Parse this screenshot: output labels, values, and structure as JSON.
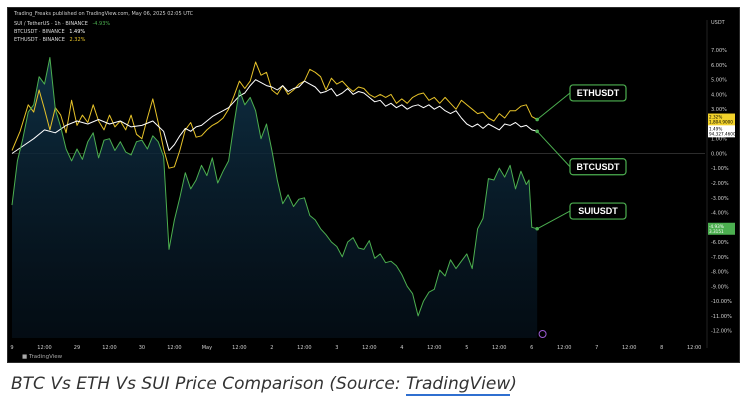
{
  "header": {
    "published": "Trading_Freaks published on TradingView.com, May 06, 2025 02:05 UTC",
    "legend": [
      {
        "label": "SUI / TetherUS · 1h · BINANCE",
        "value": "-4.93%",
        "color": "#4caf50"
      },
      {
        "label": "BTCUSDT · BINANCE",
        "value": "1.49%",
        "color": "#ffffff"
      },
      {
        "label": "ETHUSDT · BINANCE",
        "value": "2.32%",
        "color": "#e6c229"
      }
    ]
  },
  "price_scale_label": "USDT",
  "watermark": "TradingView",
  "chart_data": {
    "type": "line",
    "y_unit": "%",
    "ylim": [
      -12.5,
      8.5
    ],
    "y_ticks": [
      7,
      6,
      5,
      4,
      3,
      2,
      1,
      0,
      -1,
      -2,
      -3,
      -4,
      -5,
      -6,
      -7,
      -8,
      -9,
      -10,
      -11,
      -12
    ],
    "y_tick_labels": [
      "7.00%",
      "6.00%",
      "5.00%",
      "4.00%",
      "3.00%",
      "2.00%",
      "1.00%",
      "0.00%",
      "-1.00%",
      "-2.00%",
      "-3.00%",
      "-4.00%",
      "-5.00%",
      "-6.00%",
      "-7.00%",
      "-8.00%",
      "-9.00%",
      "-10.00%",
      "-11.00%",
      "-12.00%"
    ],
    "x_ticks": [
      {
        "pos": 0,
        "label": "9"
      },
      {
        "pos": 12,
        "label": "12:00"
      },
      {
        "pos": 24,
        "label": "29"
      },
      {
        "pos": 36,
        "label": "12:00"
      },
      {
        "pos": 48,
        "label": "30"
      },
      {
        "pos": 60,
        "label": "12:00"
      },
      {
        "pos": 72,
        "label": "May"
      },
      {
        "pos": 84,
        "label": "12:00"
      },
      {
        "pos": 96,
        "label": "2"
      },
      {
        "pos": 108,
        "label": "12:00"
      },
      {
        "pos": 120,
        "label": "3"
      },
      {
        "pos": 132,
        "label": "12:00"
      },
      {
        "pos": 144,
        "label": "4"
      },
      {
        "pos": 156,
        "label": "12:00"
      },
      {
        "pos": 168,
        "label": "5"
      },
      {
        "pos": 180,
        "label": "12:00"
      },
      {
        "pos": 192,
        "label": "6"
      },
      {
        "pos": 204,
        "label": "12:00"
      },
      {
        "pos": 216,
        "label": "7"
      },
      {
        "pos": 228,
        "label": "12:00"
      },
      {
        "pos": 240,
        "label": "8"
      },
      {
        "pos": 252,
        "label": "12:00"
      }
    ],
    "xlim": [
      0,
      256
    ],
    "series": [
      {
        "name": "ETHUSDT",
        "color": "#e6c229",
        "price_tag": "1,804.9000",
        "pct_tag": "2.32%",
        "points": [
          [
            0,
            0.2
          ],
          [
            3,
            1.5
          ],
          [
            6,
            3.3
          ],
          [
            8,
            2.8
          ],
          [
            10,
            4.3
          ],
          [
            12,
            3.0
          ],
          [
            14,
            1.6
          ],
          [
            16,
            3.1
          ],
          [
            18,
            2.6
          ],
          [
            20,
            1.4
          ],
          [
            22,
            3.6
          ],
          [
            24,
            1.9
          ],
          [
            26,
            2.6
          ],
          [
            28,
            2.1
          ],
          [
            30,
            3.3
          ],
          [
            32,
            2.2
          ],
          [
            34,
            1.6
          ],
          [
            36,
            2.6
          ],
          [
            38,
            1.8
          ],
          [
            40,
            2.2
          ],
          [
            42,
            1.6
          ],
          [
            44,
            2.6
          ],
          [
            46,
            1.3
          ],
          [
            48,
            1.0
          ],
          [
            50,
            2.4
          ],
          [
            52,
            3.7
          ],
          [
            54,
            2.1
          ],
          [
            56,
            0.3
          ],
          [
            58,
            -1.0
          ],
          [
            60,
            -0.9
          ],
          [
            62,
            0.2
          ],
          [
            64,
            1.6
          ],
          [
            66,
            2.1
          ],
          [
            68,
            1.1
          ],
          [
            70,
            1.2
          ],
          [
            72,
            1.6
          ],
          [
            74,
            1.9
          ],
          [
            76,
            2.1
          ],
          [
            78,
            2.4
          ],
          [
            80,
            3.0
          ],
          [
            82,
            3.9
          ],
          [
            84,
            4.9
          ],
          [
            86,
            4.4
          ],
          [
            88,
            4.9
          ],
          [
            90,
            6.2
          ],
          [
            92,
            5.3
          ],
          [
            94,
            5.5
          ],
          [
            96,
            4.3
          ],
          [
            98,
            4.0
          ],
          [
            100,
            4.6
          ],
          [
            102,
            4.0
          ],
          [
            104,
            4.3
          ],
          [
            106,
            4.7
          ],
          [
            108,
            4.9
          ],
          [
            110,
            5.7
          ],
          [
            112,
            5.5
          ],
          [
            114,
            5.2
          ],
          [
            116,
            4.3
          ],
          [
            118,
            5.1
          ],
          [
            120,
            4.7
          ],
          [
            122,
            4.9
          ],
          [
            124,
            4.5
          ],
          [
            126,
            4.2
          ],
          [
            128,
            4.5
          ],
          [
            130,
            4.4
          ],
          [
            132,
            4.0
          ],
          [
            134,
            3.8
          ],
          [
            136,
            4.0
          ],
          [
            138,
            3.8
          ],
          [
            140,
            4.0
          ],
          [
            142,
            3.4
          ],
          [
            144,
            3.7
          ],
          [
            146,
            3.4
          ],
          [
            148,
            3.8
          ],
          [
            150,
            4.0
          ],
          [
            152,
            4.1
          ],
          [
            154,
            3.6
          ],
          [
            156,
            3.8
          ],
          [
            158,
            3.4
          ],
          [
            160,
            3.8
          ],
          [
            162,
            3.4
          ],
          [
            164,
            3.0
          ],
          [
            166,
            3.6
          ],
          [
            168,
            3.3
          ],
          [
            170,
            3.0
          ],
          [
            172,
            2.7
          ],
          [
            174,
            2.8
          ],
          [
            176,
            2.4
          ],
          [
            178,
            2.2
          ],
          [
            180,
            2.7
          ],
          [
            182,
            2.4
          ],
          [
            184,
            2.9
          ],
          [
            186,
            2.9
          ],
          [
            188,
            3.2
          ],
          [
            190,
            3.3
          ],
          [
            192,
            2.5
          ],
          [
            194,
            2.3
          ]
        ]
      },
      {
        "name": "BTCUSDT",
        "color": "#ffffff",
        "price_tag": "94,327.4600",
        "pct_tag": "1.49%",
        "points": [
          [
            0,
            0.0
          ],
          [
            4,
            0.5
          ],
          [
            8,
            1.0
          ],
          [
            12,
            1.6
          ],
          [
            16,
            1.4
          ],
          [
            20,
            1.9
          ],
          [
            24,
            2.2
          ],
          [
            28,
            2.0
          ],
          [
            32,
            2.3
          ],
          [
            36,
            2.0
          ],
          [
            40,
            2.2
          ],
          [
            44,
            1.8
          ],
          [
            48,
            1.9
          ],
          [
            52,
            2.2
          ],
          [
            56,
            1.5
          ],
          [
            58,
            0.2
          ],
          [
            60,
            0.6
          ],
          [
            62,
            1.2
          ],
          [
            64,
            1.7
          ],
          [
            66,
            1.5
          ],
          [
            68,
            1.8
          ],
          [
            70,
            1.9
          ],
          [
            72,
            2.2
          ],
          [
            74,
            2.5
          ],
          [
            76,
            2.7
          ],
          [
            78,
            2.9
          ],
          [
            80,
            3.1
          ],
          [
            82,
            3.5
          ],
          [
            84,
            3.9
          ],
          [
            86,
            4.1
          ],
          [
            88,
            4.6
          ],
          [
            90,
            5.0
          ],
          [
            92,
            4.8
          ],
          [
            94,
            4.6
          ],
          [
            96,
            4.5
          ],
          [
            98,
            4.3
          ],
          [
            100,
            4.6
          ],
          [
            102,
            4.2
          ],
          [
            104,
            4.4
          ],
          [
            106,
            4.5
          ],
          [
            108,
            4.9
          ],
          [
            110,
            4.7
          ],
          [
            112,
            4.5
          ],
          [
            114,
            4.1
          ],
          [
            116,
            4.2
          ],
          [
            118,
            4.4
          ],
          [
            120,
            3.9
          ],
          [
            122,
            4.1
          ],
          [
            124,
            4.4
          ],
          [
            126,
            4.0
          ],
          [
            128,
            4.2
          ],
          [
            130,
            4.1
          ],
          [
            132,
            3.8
          ],
          [
            134,
            3.5
          ],
          [
            136,
            3.6
          ],
          [
            138,
            3.2
          ],
          [
            140,
            3.4
          ],
          [
            142,
            3.1
          ],
          [
            144,
            3.3
          ],
          [
            146,
            3.0
          ],
          [
            148,
            3.2
          ],
          [
            150,
            3.3
          ],
          [
            152,
            3.1
          ],
          [
            154,
            3.3
          ],
          [
            156,
            3.0
          ],
          [
            158,
            3.2
          ],
          [
            160,
            2.9
          ],
          [
            162,
            2.7
          ],
          [
            164,
            2.9
          ],
          [
            166,
            2.4
          ],
          [
            168,
            2.0
          ],
          [
            170,
            1.8
          ],
          [
            172,
            2.0
          ],
          [
            174,
            1.7
          ],
          [
            176,
            2.0
          ],
          [
            178,
            1.8
          ],
          [
            180,
            1.6
          ],
          [
            182,
            2.0
          ],
          [
            184,
            1.9
          ],
          [
            186,
            2.1
          ],
          [
            188,
            1.8
          ],
          [
            190,
            1.9
          ],
          [
            192,
            1.6
          ],
          [
            194,
            1.5
          ]
        ]
      },
      {
        "name": "SUIUSDT",
        "color": "#4caf50",
        "price_tag": "3.3151",
        "pct_tag": "-4.93%",
        "points": [
          [
            0,
            -3.5
          ],
          [
            2,
            -0.5
          ],
          [
            4,
            1.0
          ],
          [
            6,
            2.8
          ],
          [
            8,
            3.3
          ],
          [
            10,
            5.2
          ],
          [
            12,
            4.7
          ],
          [
            14,
            6.5
          ],
          [
            16,
            3.0
          ],
          [
            18,
            1.8
          ],
          [
            20,
            0.3
          ],
          [
            22,
            -0.5
          ],
          [
            24,
            0.3
          ],
          [
            26,
            -0.4
          ],
          [
            28,
            0.8
          ],
          [
            30,
            1.4
          ],
          [
            32,
            -0.3
          ],
          [
            34,
            0.9
          ],
          [
            36,
            1.0
          ],
          [
            38,
            0.2
          ],
          [
            40,
            0.8
          ],
          [
            42,
            0.1
          ],
          [
            44,
            -0.1
          ],
          [
            46,
            0.8
          ],
          [
            48,
            0.9
          ],
          [
            50,
            0.3
          ],
          [
            52,
            1.2
          ],
          [
            54,
            0.8
          ],
          [
            56,
            -0.2
          ],
          [
            58,
            -6.5
          ],
          [
            60,
            -4.5
          ],
          [
            62,
            -3.0
          ],
          [
            64,
            -1.3
          ],
          [
            66,
            -2.4
          ],
          [
            68,
            -1.8
          ],
          [
            70,
            -0.8
          ],
          [
            72,
            -1.5
          ],
          [
            74,
            -0.3
          ],
          [
            76,
            -2.0
          ],
          [
            78,
            -1.2
          ],
          [
            80,
            -0.5
          ],
          [
            82,
            2.0
          ],
          [
            84,
            4.3
          ],
          [
            86,
            3.3
          ],
          [
            88,
            3.8
          ],
          [
            90,
            2.9
          ],
          [
            92,
            1.0
          ],
          [
            94,
            2.0
          ],
          [
            96,
            0.2
          ],
          [
            98,
            -1.8
          ],
          [
            100,
            -3.4
          ],
          [
            102,
            -2.8
          ],
          [
            104,
            -3.6
          ],
          [
            106,
            -3.1
          ],
          [
            108,
            -3.0
          ],
          [
            110,
            -4.2
          ],
          [
            112,
            -4.5
          ],
          [
            114,
            -5.1
          ],
          [
            116,
            -5.5
          ],
          [
            118,
            -6.0
          ],
          [
            120,
            -6.3
          ],
          [
            122,
            -7.0
          ],
          [
            124,
            -6.0
          ],
          [
            126,
            -5.7
          ],
          [
            128,
            -6.4
          ],
          [
            130,
            -6.5
          ],
          [
            132,
            -5.9
          ],
          [
            134,
            -7.1
          ],
          [
            136,
            -6.8
          ],
          [
            138,
            -7.4
          ],
          [
            140,
            -7.3
          ],
          [
            142,
            -7.6
          ],
          [
            144,
            -8.2
          ],
          [
            146,
            -9.0
          ],
          [
            148,
            -9.5
          ],
          [
            150,
            -11.0
          ],
          [
            152,
            -10.0
          ],
          [
            154,
            -9.4
          ],
          [
            156,
            -9.2
          ],
          [
            158,
            -7.9
          ],
          [
            160,
            -8.3
          ],
          [
            162,
            -7.2
          ],
          [
            164,
            -7.8
          ],
          [
            166,
            -7.3
          ],
          [
            168,
            -6.8
          ],
          [
            170,
            -7.8
          ],
          [
            172,
            -5.1
          ],
          [
            174,
            -4.4
          ],
          [
            176,
            -1.7
          ],
          [
            178,
            -1.8
          ],
          [
            180,
            -1.0
          ],
          [
            182,
            -1.6
          ],
          [
            184,
            -0.8
          ],
          [
            186,
            -2.4
          ],
          [
            188,
            -1.2
          ],
          [
            190,
            -2.1
          ],
          [
            191,
            -1.8
          ],
          [
            192,
            -5.0
          ],
          [
            194,
            -5.1
          ]
        ]
      }
    ],
    "annotations": [
      {
        "text": "ETHUSDT",
        "series": "ETHUSDT",
        "y": 4.1
      },
      {
        "text": "BTCUSDT",
        "series": "BTCUSDT",
        "y": -0.9
      },
      {
        "text": "SUIUSDT",
        "series": "SUIUSDT",
        "y": -3.9
      }
    ]
  },
  "caption": {
    "prefix": "BTC Vs ETH Vs SUI Price Comparison (Source: ",
    "link": "TradingView",
    "suffix": ")"
  }
}
